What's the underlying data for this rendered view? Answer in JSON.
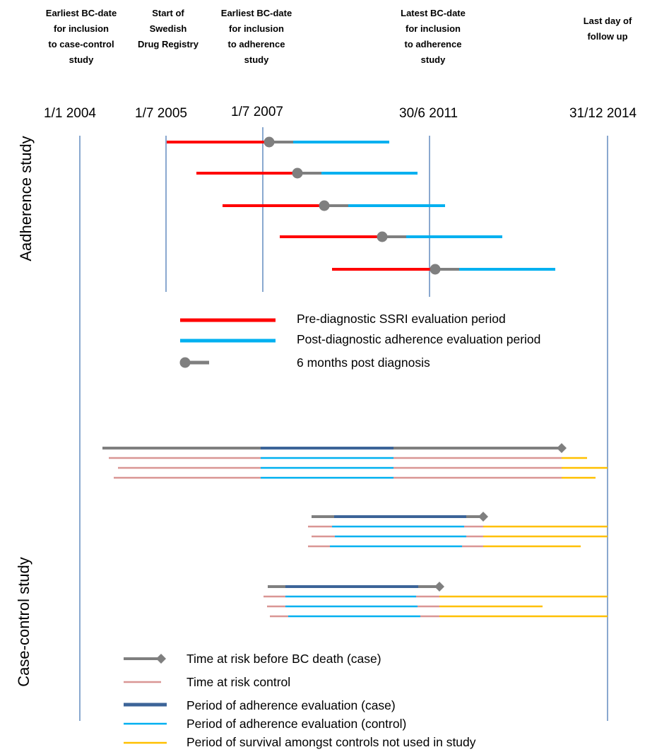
{
  "headers": [
    {
      "text": "Earliest BC-date\nfor inclusion\nto case-control\nstudy"
    },
    {
      "text": "Start of\nSwedish\nDrug Registry"
    },
    {
      "text": "Earliest BC-date\nfor inclusion\nto adherence\nstudy"
    },
    {
      "text": "Latest BC-date\nfor inclusion\nto adherence\nstudy"
    },
    {
      "text": "Last day of\nfollow up"
    }
  ],
  "dates": [
    "1/1 2004",
    "1/7 2005",
    "1/7 2007",
    "30/6 2011",
    "31/12 2014"
  ],
  "side_labels": {
    "adherence": "Aadherence study",
    "case_control": "Case-control study"
  },
  "legend_adherence": {
    "pre": "Pre-diagnostic SSRI evaluation period",
    "post": "Post-diagnostic adherence evaluation period",
    "six_months": "6 months post diagnosis"
  },
  "legend_casecontrol": {
    "risk_case": "Time at risk before BC death (case)",
    "risk_control": "Time at risk control",
    "adh_case": "Period of adherence evaluation (case)",
    "adh_control": "Period of adherence evaluation (control)",
    "survival": "Period of survival amongst controls not used in study"
  },
  "colors": {
    "red": "#ff0000",
    "cyan": "#00b0f0",
    "gray": "#7f7f7f",
    "pink": "#d99694",
    "navy": "#3c6498",
    "yellow": "#ffc000",
    "vline": "#4a7ab5"
  }
}
